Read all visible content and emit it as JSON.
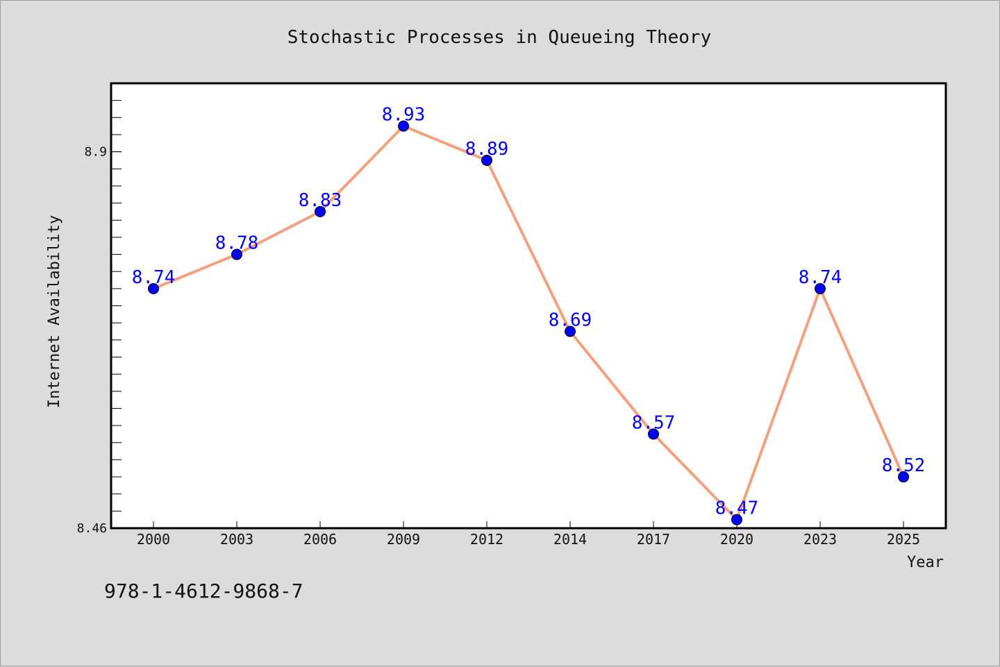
{
  "chart_data": {
    "type": "line",
    "title": "Stochastic Processes in Queueing Theory",
    "xlabel": "Year",
    "ylabel": "Internet Availability",
    "categories": [
      "2000",
      "2003",
      "2006",
      "2009",
      "2012",
      "2014",
      "2017",
      "2020",
      "2023",
      "2025"
    ],
    "series": [
      {
        "values": [
          8.74,
          8.78,
          8.83,
          8.93,
          8.89,
          8.69,
          8.57,
          8.47,
          8.74,
          8.52
        ],
        "line_color": "#f4a07c",
        "marker_color": "#0000ff"
      }
    ],
    "ylim": [
      8.46,
      8.98
    ],
    "yticks": [
      "8.46",
      "8.9"
    ],
    "data_labels": [
      "8.74",
      "8.78",
      "8.83",
      "8.93",
      "8.89",
      "8.69",
      "8.57",
      "8.47",
      "8.74",
      "8.52"
    ],
    "grid": false,
    "legend": "none"
  },
  "footer": {
    "isbn": "978-1-4612-9868-7"
  }
}
